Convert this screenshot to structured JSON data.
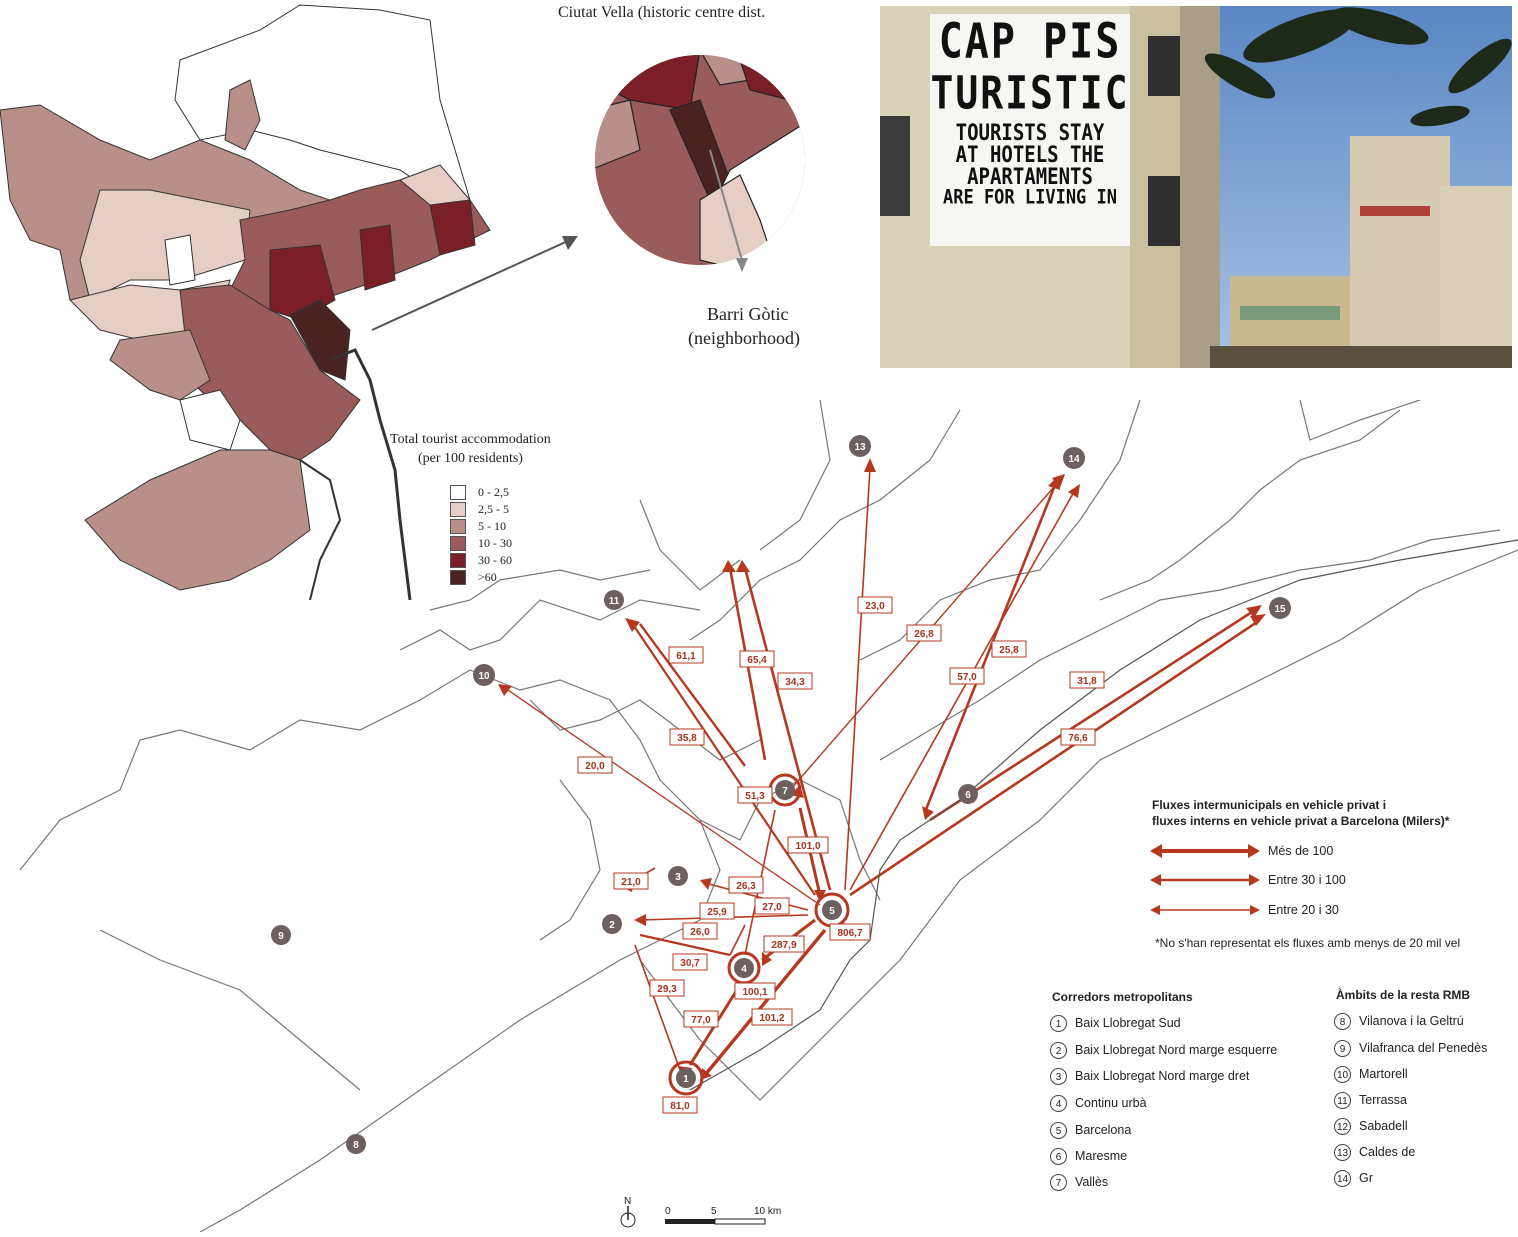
{
  "top_map": {
    "inset_title": "Ciutat Vella (historic centre dist.",
    "inset_label_line1": "Barri Gòtic",
    "inset_label_line2": "(neighborhood)",
    "legend_title_line1": "Total tourist accommodation",
    "legend_title_line2": "(per 100 residents)",
    "legend": [
      {
        "label": "0 - 2,5",
        "color": "#ffffff"
      },
      {
        "label": "2,5 - 5",
        "color": "#e6cdc6"
      },
      {
        "label": "5 - 10",
        "color": "#b98f8a"
      },
      {
        "label": "10 - 30",
        "color": "#9a5b5b"
      },
      {
        "label": "30 - 60",
        "color": "#7a1f25"
      },
      {
        "label": ">60",
        "color": "#4a2222"
      }
    ]
  },
  "photo": {
    "banner_line1": "CAP PIS",
    "banner_line2": "TURISTIC",
    "banner_line3": "TOURISTS STAY",
    "banner_line4": "AT HOTELS THE",
    "banner_line5": "APARTAMENTS",
    "banner_line6": "ARE FOR LIVING IN"
  },
  "flow_map": {
    "accent": "#b5381f",
    "nodes": [
      "1",
      "2",
      "3",
      "4",
      "5",
      "6",
      "7",
      "8",
      "9",
      "10",
      "11",
      "13",
      "14",
      "15"
    ],
    "flow_labels": [
      "61,1",
      "65,4",
      "34,3",
      "23,0",
      "26,8",
      "25,8",
      "57,0",
      "31,8",
      "76,6",
      "35,8",
      "20,0",
      "51,3",
      "101,0",
      "21,0",
      "26,3",
      "25,9",
      "27,0",
      "26,0",
      "287,9",
      "806,7",
      "30,7",
      "29,3",
      "100,1",
      "77,0",
      "101,2",
      "81,0"
    ],
    "legend_title_line1": "Fluxes intermunicipals en vehicle privat i",
    "legend_title_line2": "fluxes interns en vehicle privat a Barcelona (Milers)*",
    "legend_items": [
      "Més de 100",
      "Entre 30 i 100",
      "Entre 20 i 30"
    ],
    "footnote": "*No s'han representat els fluxes amb menys de 20 mil vel",
    "corridors_title": "Corredors metropolitans",
    "corridors": [
      {
        "num": "1",
        "name": "Baix Llobregat Sud"
      },
      {
        "num": "2",
        "name": "Baix Llobregat Nord marge esquerre"
      },
      {
        "num": "3",
        "name": "Baix Llobregat Nord marge dret"
      },
      {
        "num": "4",
        "name": "Continu urbà"
      },
      {
        "num": "5",
        "name": "Barcelona"
      },
      {
        "num": "6",
        "name": "Maresme"
      },
      {
        "num": "7",
        "name": "Vallès"
      }
    ],
    "ambits_title": "Àmbits de la resta RMB",
    "ambits": [
      {
        "num": "8",
        "name": "Vilanova i la Geltrú"
      },
      {
        "num": "9",
        "name": "Vilafranca del Penedès"
      },
      {
        "num": "10",
        "name": "Martorell"
      },
      {
        "num": "11",
        "name": "Terrassa"
      },
      {
        "num": "12",
        "name": "Sabadell"
      },
      {
        "num": "13",
        "name": "Caldes de"
      },
      {
        "num": "14",
        "name": "Gr"
      }
    ],
    "scale_ticks": [
      "0",
      "5",
      "10 km"
    ],
    "north": "N"
  }
}
